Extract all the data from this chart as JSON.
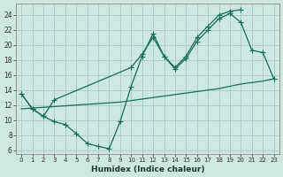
{
  "xlabel": "Humidex (Indice chaleur)",
  "bg_color": "#cce8e0",
  "grid_color": "#aacfc8",
  "line_color": "#1a6b5a",
  "xlim": [
    -0.5,
    23.5
  ],
  "ylim": [
    5.5,
    25.5
  ],
  "xticks": [
    0,
    1,
    2,
    3,
    4,
    5,
    6,
    7,
    8,
    9,
    10,
    11,
    12,
    13,
    14,
    15,
    16,
    17,
    18,
    19,
    20,
    21,
    22,
    23
  ],
  "yticks": [
    6,
    8,
    10,
    12,
    14,
    16,
    18,
    20,
    22,
    24
  ],
  "line1_x": [
    0,
    1,
    2,
    3,
    4,
    5,
    6,
    7,
    8,
    9,
    10,
    11,
    12,
    13,
    14,
    15,
    16,
    17,
    18,
    19,
    20
  ],
  "line1_y": [
    13.5,
    11.5,
    10.5,
    9.8,
    9.4,
    8.2,
    6.9,
    6.5,
    6.2,
    9.8,
    14.5,
    18.5,
    21.5,
    18.5,
    17.0,
    18.5,
    21.0,
    22.5,
    24.0,
    24.5,
    24.7
  ],
  "line2_x": [
    0,
    1,
    2,
    3,
    10,
    11,
    12,
    13,
    14,
    15,
    16,
    17,
    18,
    19,
    20,
    21,
    22,
    23
  ],
  "line2_y": [
    13.5,
    11.5,
    10.5,
    12.7,
    17.0,
    18.8,
    21.0,
    18.5,
    16.8,
    18.2,
    20.5,
    22.0,
    23.5,
    24.2,
    23.0,
    19.3,
    19.0,
    15.5
  ],
  "line3_x": [
    0,
    1,
    2,
    3,
    4,
    5,
    6,
    7,
    8,
    9,
    10,
    11,
    12,
    13,
    14,
    15,
    16,
    17,
    18,
    19,
    20,
    21,
    22,
    23
  ],
  "line3_y": [
    11.5,
    11.6,
    11.7,
    11.8,
    11.9,
    12.0,
    12.1,
    12.2,
    12.3,
    12.4,
    12.6,
    12.8,
    13.0,
    13.2,
    13.4,
    13.6,
    13.8,
    14.0,
    14.2,
    14.5,
    14.8,
    15.0,
    15.2,
    15.5
  ]
}
